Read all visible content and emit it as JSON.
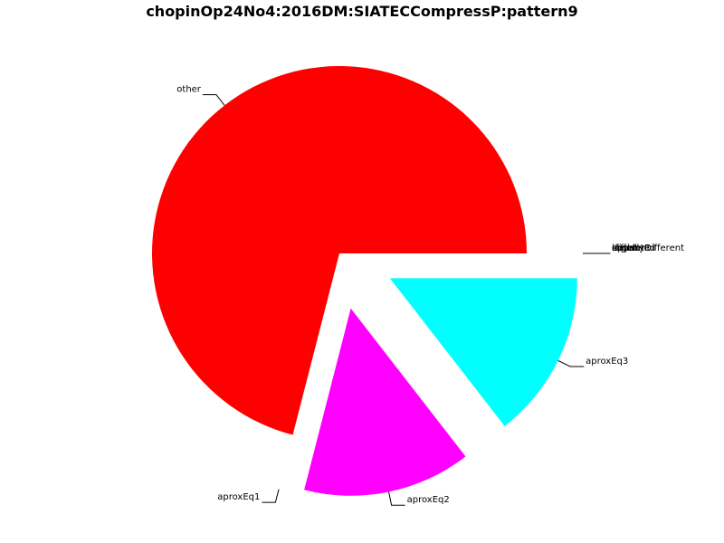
{
  "chart_data": {
    "type": "pie",
    "title": "chopinOp24No4:2016DM:SIATECCompressP:pattern9",
    "categories": [
      "other",
      "aproxEq1",
      "aproxEq2",
      "aproxEq3",
      "equal",
      "slightlyDifferent",
      "different",
      "unrelated",
      "upper",
      "lower"
    ],
    "values": [
      71,
      0,
      14.5,
      14.5,
      0,
      0,
      0,
      0,
      0,
      0
    ],
    "colors": [
      "#ff0000",
      "#0000ff",
      "#ff00ff",
      "#00ffff",
      "#00ff00",
      "#ffff00",
      "#808080",
      "#000000",
      "#ffa500",
      "#800080"
    ],
    "start_angle_deg": 0,
    "direction": "counterclockwise",
    "exploded_except": "other"
  }
}
